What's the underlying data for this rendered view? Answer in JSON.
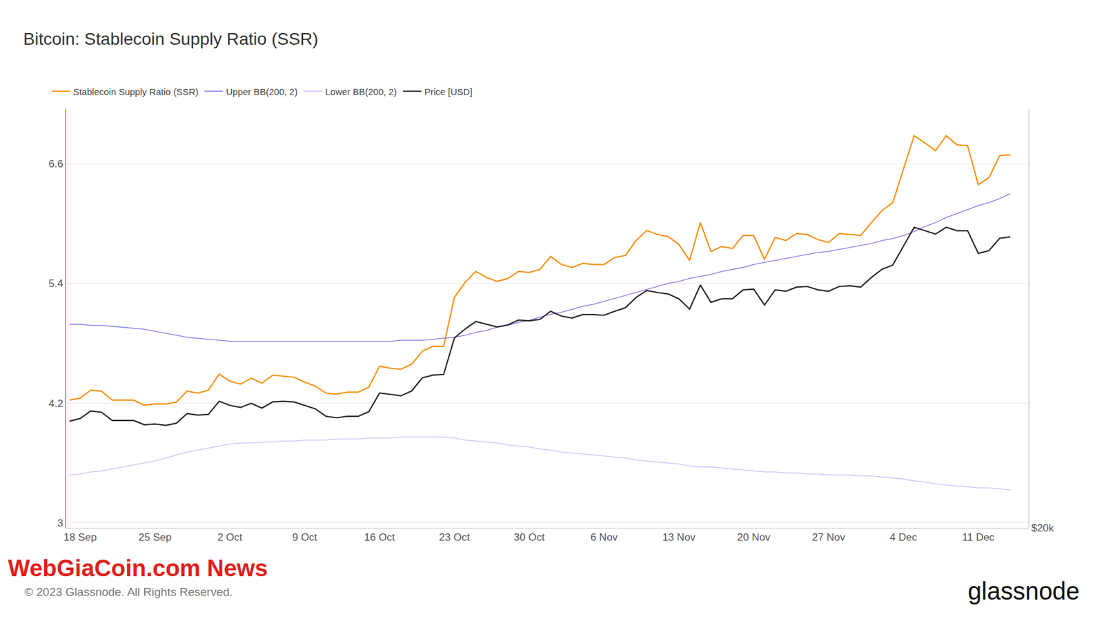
{
  "chart_data": {
    "type": "line",
    "title": "Bitcoin: Stablecoin Supply Ratio (SSR)",
    "categories": [
      null,
      "18 Sep",
      null,
      null,
      null,
      null,
      null,
      null,
      "25 Sep",
      null,
      null,
      null,
      null,
      null,
      null,
      "2 Oct",
      null,
      null,
      null,
      null,
      null,
      null,
      "9 Oct",
      null,
      null,
      null,
      null,
      null,
      null,
      "16 Oct",
      null,
      null,
      null,
      null,
      null,
      null,
      "23 Oct",
      null,
      null,
      null,
      null,
      null,
      null,
      "30 Oct",
      null,
      null,
      null,
      null,
      null,
      null,
      "6 Nov",
      null,
      null,
      null,
      null,
      null,
      null,
      "13 Nov",
      null,
      null,
      null,
      null,
      null,
      null,
      "20 Nov",
      null,
      null,
      null,
      null,
      null,
      null,
      "27 Nov",
      null,
      null,
      null,
      null,
      null,
      null,
      "4 Dec",
      null,
      null,
      null,
      null,
      null,
      null,
      "11 Dec",
      null,
      null,
      null
    ],
    "series": [
      {
        "name": "Stablecoin Supply Ratio (SSR)",
        "color": "#f7931a",
        "values": [
          4.23,
          4.25,
          4.33,
          4.32,
          4.23,
          4.23,
          4.23,
          4.18,
          4.19,
          4.19,
          4.21,
          4.32,
          4.3,
          4.33,
          4.49,
          4.42,
          4.39,
          4.45,
          4.4,
          4.48,
          4.47,
          4.46,
          4.41,
          4.37,
          4.3,
          4.29,
          4.31,
          4.31,
          4.36,
          4.57,
          4.55,
          4.54,
          4.59,
          4.72,
          4.77,
          4.77,
          5.26,
          5.41,
          5.52,
          5.46,
          5.42,
          5.45,
          5.52,
          5.51,
          5.54,
          5.67,
          5.59,
          5.56,
          5.6,
          5.59,
          5.59,
          5.66,
          5.68,
          5.83,
          5.93,
          5.89,
          5.87,
          5.79,
          5.63,
          6.01,
          5.72,
          5.77,
          5.75,
          5.88,
          5.88,
          5.64,
          5.86,
          5.83,
          5.9,
          5.89,
          5.84,
          5.81,
          5.9,
          5.89,
          5.88,
          6.01,
          6.13,
          6.21,
          6.54,
          6.88,
          6.81,
          6.73,
          6.88,
          6.79,
          6.78,
          6.39,
          6.46,
          6.68,
          6.69
        ]
      },
      {
        "name": "Upper BB(200, 2)",
        "color": "#7b7bf2",
        "values": [
          4.99,
          4.99,
          4.98,
          4.98,
          4.97,
          4.96,
          4.95,
          4.94,
          4.92,
          4.9,
          4.88,
          4.86,
          4.85,
          4.84,
          4.83,
          4.82,
          4.82,
          4.82,
          4.82,
          4.82,
          4.82,
          4.82,
          4.82,
          4.82,
          4.82,
          4.82,
          4.82,
          4.82,
          4.82,
          4.82,
          4.82,
          4.83,
          4.83,
          4.83,
          4.84,
          4.85,
          4.86,
          4.88,
          4.91,
          4.93,
          4.96,
          4.98,
          5.01,
          5.03,
          5.06,
          5.09,
          5.11,
          5.14,
          5.17,
          5.19,
          5.22,
          5.25,
          5.28,
          5.31,
          5.34,
          5.37,
          5.4,
          5.42,
          5.45,
          5.47,
          5.49,
          5.52,
          5.54,
          5.56,
          5.59,
          5.61,
          5.63,
          5.65,
          5.67,
          5.69,
          5.71,
          5.72,
          5.74,
          5.76,
          5.78,
          5.8,
          5.83,
          5.85,
          5.88,
          5.92,
          5.97,
          6.01,
          6.06,
          6.1,
          6.14,
          6.18,
          6.21,
          6.25,
          6.3
        ]
      },
      {
        "name": "Lower BB(200, 2)",
        "color": "#c4c4f6",
        "values": [
          3.48,
          3.49,
          3.51,
          3.52,
          3.54,
          3.56,
          3.58,
          3.6,
          3.62,
          3.65,
          3.68,
          3.71,
          3.73,
          3.75,
          3.77,
          3.79,
          3.8,
          3.8,
          3.81,
          3.81,
          3.82,
          3.82,
          3.83,
          3.83,
          3.83,
          3.84,
          3.84,
          3.84,
          3.85,
          3.85,
          3.85,
          3.86,
          3.86,
          3.86,
          3.86,
          3.86,
          3.85,
          3.83,
          3.82,
          3.81,
          3.8,
          3.78,
          3.77,
          3.76,
          3.74,
          3.73,
          3.71,
          3.7,
          3.69,
          3.68,
          3.67,
          3.66,
          3.65,
          3.63,
          3.62,
          3.61,
          3.6,
          3.59,
          3.57,
          3.56,
          3.56,
          3.55,
          3.54,
          3.53,
          3.52,
          3.51,
          3.51,
          3.5,
          3.5,
          3.49,
          3.49,
          3.48,
          3.48,
          3.48,
          3.47,
          3.47,
          3.46,
          3.45,
          3.44,
          3.42,
          3.41,
          3.39,
          3.38,
          3.37,
          3.36,
          3.35,
          3.35,
          3.34,
          3.33
        ]
      },
      {
        "name": "Price [USD]",
        "color": "#2b2b2b",
        "axis": "y2",
        "values": [
          26450,
          26640,
          27170,
          27080,
          26500,
          26500,
          26500,
          26210,
          26260,
          26160,
          26310,
          26980,
          26880,
          26930,
          27870,
          27570,
          27420,
          27720,
          27370,
          27820,
          27870,
          27820,
          27570,
          27320,
          26790,
          26690,
          26790,
          26790,
          27120,
          28480,
          28380,
          28270,
          28630,
          29630,
          29850,
          29900,
          32900,
          33680,
          34350,
          34100,
          33860,
          34050,
          34480,
          34410,
          34540,
          35290,
          34850,
          34660,
          34980,
          34980,
          34920,
          35290,
          35620,
          36590,
          37260,
          37060,
          36920,
          36460,
          35490,
          37800,
          36130,
          36460,
          36460,
          37320,
          37390,
          35870,
          37320,
          37190,
          37590,
          37660,
          37320,
          37190,
          37660,
          37730,
          37590,
          38560,
          39400,
          39830,
          41890,
          43980,
          43590,
          43200,
          43980,
          43590,
          43590,
          41070,
          41370,
          42730,
          42890
        ]
      }
    ],
    "ylim": [
      2.95,
      7.15
    ],
    "yticks": [
      3,
      4.2,
      5.4,
      6.6
    ],
    "y2lim": [
      20000,
      60000
    ],
    "y2ticks": [
      {
        "value": 20000,
        "label": "$20k"
      }
    ],
    "log": "y2",
    "grid": true,
    "legend": "top left",
    "annotations": [
      {
        "text": "WebGiaCoin.com News"
      },
      {
        "text": "© 2023 Glassnode. All Rights Reserved."
      },
      {
        "text": "glassnode"
      }
    ]
  }
}
